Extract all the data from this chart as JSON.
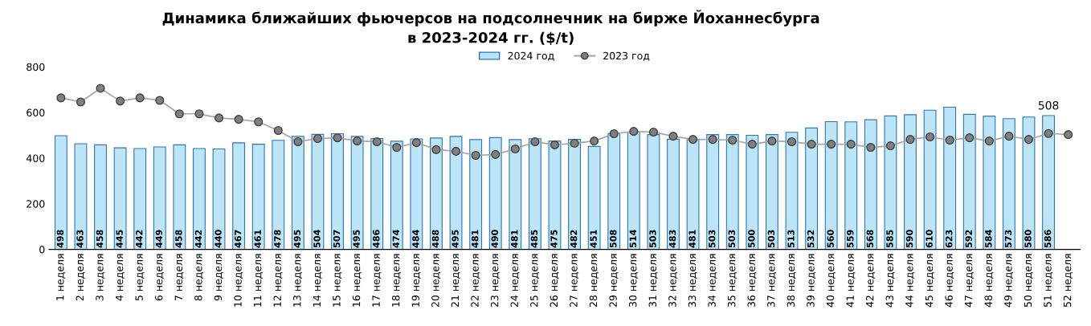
{
  "chart_data": {
    "type": "bar",
    "title": "Динамика ближайших фьючерсов на подсолнечник на бирже Йоханнесбурга\nв 2023-2024 гг. ($/t)",
    "categories": [
      "1 неделя",
      "2 неделя",
      "3 неделя",
      "4 неделя",
      "5 неделя",
      "6 неделя",
      "7 неделя",
      "8 неделя",
      "9 неделя",
      "10 неделя",
      "11 неделя",
      "12 неделя",
      "13 неделя",
      "14 неделя",
      "15 неделя",
      "16 неделя",
      "17 неделя",
      "18 неделя",
      "19 неделя",
      "20 неделя",
      "21 неделя",
      "22 неделя",
      "23 неделя",
      "24 неделя",
      "25 неделя",
      "26 неделя",
      "27 неделя",
      "28 неделя",
      "29 неделя",
      "30 неделя",
      "31 неделя",
      "32 неделя",
      "33 неделя",
      "34 неделя",
      "35 неделя",
      "36 неделя",
      "37 неделя",
      "38 неделя",
      "39 неделя",
      "40 неделя",
      "41 неделя",
      "42 неделя",
      "43 неделя",
      "44 неделя",
      "45 неделя",
      "46 неделя",
      "47 неделя",
      "48 неделя",
      "49 неделя",
      "50 неделя",
      "51 неделя",
      "52 неделя"
    ],
    "series": [
      {
        "name": "2024 год",
        "color": "#bde5f8",
        "values": [
          498,
          463,
          458,
          445,
          442,
          449,
          458,
          442,
          440,
          467,
          461,
          478,
          495,
          504,
          507,
          495,
          486,
          474,
          484,
          488,
          495,
          481,
          490,
          481,
          485,
          475,
          482,
          451,
          508,
          514,
          503,
          483,
          481,
          503,
          503,
          500,
          503,
          513,
          532,
          560,
          559,
          568,
          585,
          590,
          610,
          623,
          592,
          584,
          573,
          580,
          586,
          null
        ],
        "value_labels": [
          "498",
          "463",
          "458",
          "445",
          "442",
          "449",
          "458",
          "442",
          "440",
          "467",
          "461",
          "478",
          "495",
          "504",
          "507",
          "495",
          "486",
          "474",
          "484",
          "488",
          "495",
          "481",
          "490",
          "481",
          "485",
          "475",
          "482",
          "451",
          "508",
          "514",
          "503",
          "483",
          "481",
          "503",
          "503",
          "500",
          "503",
          "513",
          "532",
          "560",
          "559",
          "568",
          "585",
          "590",
          "610",
          "623",
          "592",
          "584",
          "573",
          "580",
          "586",
          null
        ]
      },
      {
        "name": "2023 год",
        "type": "line",
        "color": "#7f7f7f",
        "marker": "circle",
        "values": [
          664,
          646,
          706,
          650,
          664,
          653,
          594,
          594,
          576,
          570,
          559,
          521,
          472,
          486,
          489,
          475,
          472,
          447,
          468,
          437,
          430,
          412,
          416,
          440,
          472,
          458,
          465,
          475,
          507,
          517,
          514,
          496,
          482,
          482,
          479,
          461,
          475,
          472,
          461,
          461,
          461,
          447,
          454,
          482,
          493,
          479,
          489,
          475,
          496,
          482,
          508,
          503
        ],
        "value_labels": [
          null,
          null,
          null,
          null,
          null,
          null,
          null,
          null,
          null,
          null,
          null,
          null,
          null,
          null,
          null,
          null,
          null,
          null,
          null,
          null,
          null,
          null,
          null,
          null,
          null,
          null,
          null,
          null,
          null,
          null,
          null,
          null,
          null,
          null,
          null,
          null,
          null,
          null,
          null,
          null,
          null,
          null,
          null,
          null,
          null,
          null,
          null,
          null,
          null,
          null,
          "508",
          null
        ]
      }
    ],
    "ylim": [
      0,
      800
    ],
    "yticks": [
      0,
      200,
      400,
      600,
      800
    ],
    "grid": false,
    "legend": "top"
  }
}
